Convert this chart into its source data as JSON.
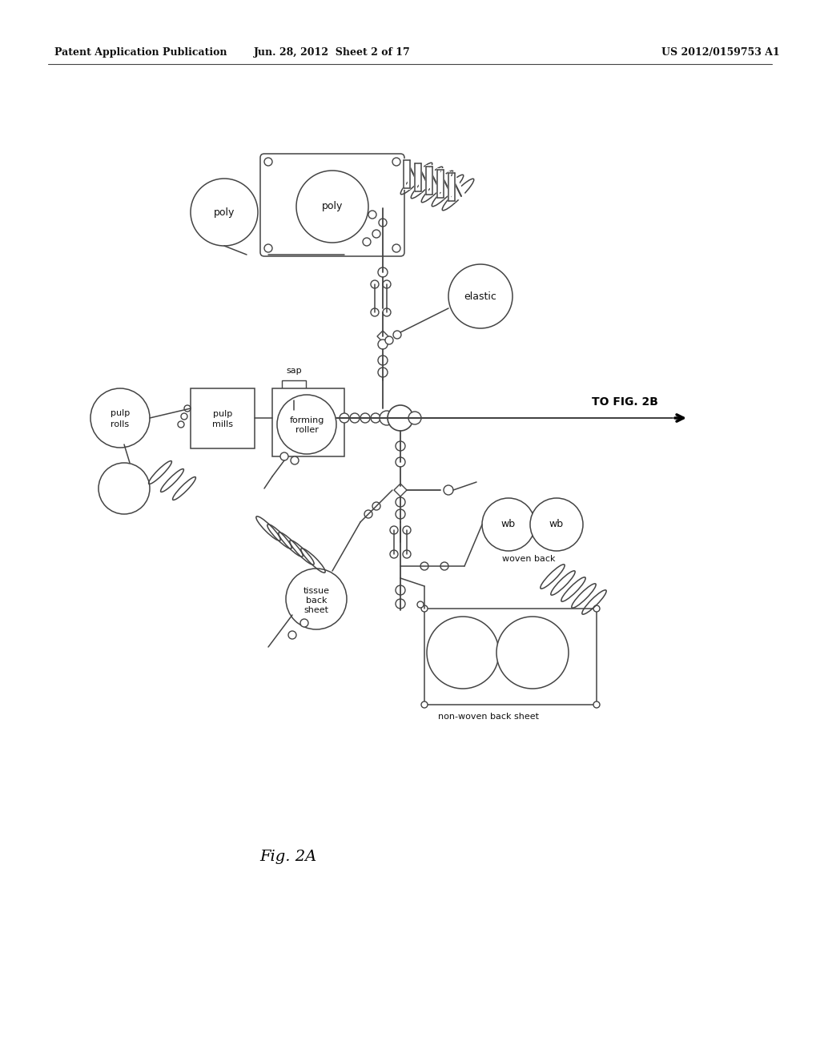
{
  "title_left": "Patent Application Publication",
  "title_mid": "Jun. 28, 2012  Sheet 2 of 17",
  "title_right": "US 2012/0159753 A1",
  "fig_label": "Fig. 2A",
  "bg_color": "#ffffff",
  "line_color": "#444444",
  "text_color": "#111111"
}
